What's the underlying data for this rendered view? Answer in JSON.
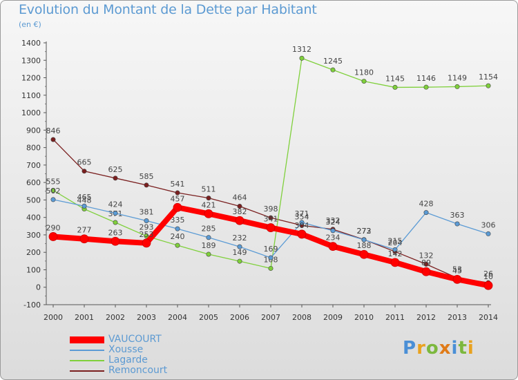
{
  "title": "Evolution du Montant de la Dette par Habitant",
  "subtitle": "(en €)",
  "logo": {
    "text": "Proxiti",
    "letters": [
      {
        "ch": "P",
        "color": "#4a8fd6"
      },
      {
        "ch": "r",
        "color": "#e9a21f"
      },
      {
        "ch": "o",
        "color": "#7cb83e"
      },
      {
        "ch": "x",
        "color": "#e07b18"
      },
      {
        "ch": "i",
        "color": "#4a8fd6"
      },
      {
        "ch": "t",
        "color": "#7cb83e"
      },
      {
        "ch": "i",
        "color": "#e9a21f"
      }
    ]
  },
  "chart_data": {
    "type": "line",
    "x": [
      "2000",
      "2001",
      "2002",
      "2003",
      "2004",
      "2005",
      "2006",
      "2007",
      "2008",
      "2009",
      "2010",
      "2011",
      "2012",
      "2013",
      "2014"
    ],
    "ylim": [
      -100,
      1400
    ],
    "yticks": [
      -100,
      0,
      100,
      200,
      300,
      400,
      500,
      600,
      700,
      800,
      900,
      1000,
      1100,
      1200,
      1300,
      1400
    ],
    "grid": false,
    "legend_position": "bottom-left",
    "series": [
      {
        "name": "VAUCOURT",
        "color": "#ff0000",
        "values": [
          290,
          277,
          263,
          253,
          457,
          421,
          382,
          341,
          304,
          234,
          188,
          142,
          89,
          45,
          10
        ]
      },
      {
        "name": "Xousse",
        "color": "#5b9bd5",
        "values": [
          502,
          465,
          424,
          381,
          335,
          285,
          232,
          169,
          371,
          324,
          272,
          215,
          428,
          363,
          306
        ]
      },
      {
        "name": "Lagarde",
        "color": "#7fd03b",
        "values": [
          555,
          448,
          371,
          293,
          240,
          189,
          149,
          108,
          1312,
          1245,
          1180,
          1145,
          1146,
          1149,
          1154
        ]
      },
      {
        "name": "Remoncourt",
        "color": "#7a1f1f",
        "values": [
          846,
          665,
          625,
          585,
          541,
          511,
          464,
          398,
          354,
          332,
          273,
          204,
          132,
          53,
          26
        ]
      }
    ]
  }
}
